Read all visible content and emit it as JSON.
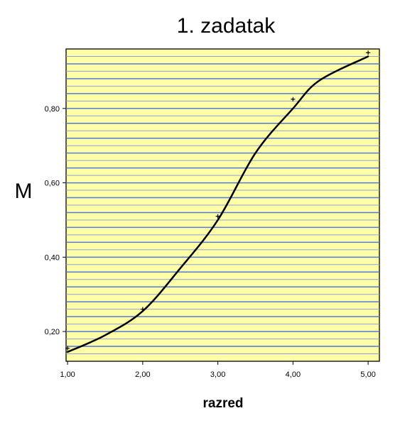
{
  "chart_data": {
    "type": "scatter",
    "title": "1. zadatak",
    "xlabel": "razred",
    "ylabel": "M",
    "xlim": [
      0.98,
      5.15
    ],
    "ylim": [
      0.12,
      0.96
    ],
    "x_ticks": [
      1,
      2,
      3,
      4,
      5
    ],
    "x_tick_labels": [
      "1,00",
      "2,00",
      "3,00",
      "4,00",
      "5,00"
    ],
    "y_ticks": [
      0.2,
      0.4,
      0.6,
      0.8
    ],
    "y_tick_labels": [
      "0,20",
      "0,40",
      "0,60",
      "0,80"
    ],
    "grid": true,
    "series": [
      {
        "type": "scatter",
        "marker": "plus",
        "x": [
          1,
          2,
          3,
          4,
          5
        ],
        "y": [
          0.155,
          0.26,
          0.51,
          0.825,
          0.95
        ]
      },
      {
        "type": "line",
        "style": "smooth fit",
        "x": [
          1.0,
          1.5,
          2.0,
          2.5,
          3.0,
          3.5,
          4.0,
          4.35,
          5.0
        ],
        "y": [
          0.145,
          0.19,
          0.255,
          0.37,
          0.5,
          0.68,
          0.8,
          0.875,
          0.94
        ]
      }
    ],
    "colors": {
      "plot_background": "#FFFFA8",
      "gridline_major": "#5577D9",
      "gridline_minor": "#8FA0DD",
      "line": "#000000",
      "marker": "#000000"
    }
  }
}
